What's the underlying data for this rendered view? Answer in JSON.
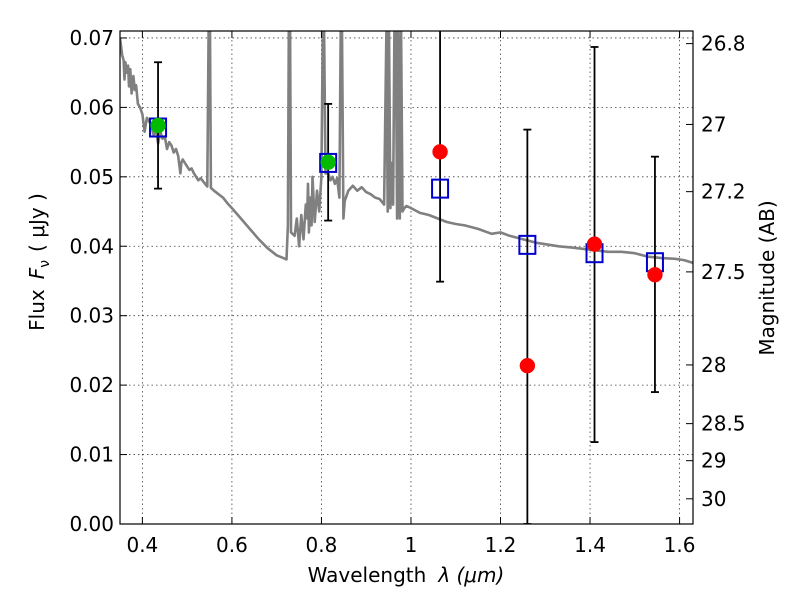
{
  "chart_data": {
    "type": "scatter",
    "xlabel": "Wavelength",
    "xlabel_symbol": "λ (μm)",
    "ylabel": "Flux",
    "ylabel_symbol": "F",
    "ylabel_sub": "ν",
    "ylabel_unit": "( μJy )",
    "y2label": "Magnitude (AB)",
    "xlim": [
      0.35,
      1.63
    ],
    "ylim": [
      0.0,
      0.071
    ],
    "grid": true,
    "x_ticks": [
      {
        "value": 0.4,
        "label": "0.4"
      },
      {
        "value": 0.6,
        "label": "0.6"
      },
      {
        "value": 0.8,
        "label": "0.8"
      },
      {
        "value": 1.0,
        "label": "1"
      },
      {
        "value": 1.2,
        "label": "1.2"
      },
      {
        "value": 1.4,
        "label": "1.4"
      },
      {
        "value": 1.6,
        "label": "1.6"
      }
    ],
    "y_ticks": [
      {
        "value": 0.0,
        "label": "0.00"
      },
      {
        "value": 0.01,
        "label": "0.01"
      },
      {
        "value": 0.02,
        "label": "0.02"
      },
      {
        "value": 0.03,
        "label": "0.03"
      },
      {
        "value": 0.04,
        "label": "0.04"
      },
      {
        "value": 0.05,
        "label": "0.05"
      },
      {
        "value": 0.06,
        "label": "0.06"
      },
      {
        "value": 0.07,
        "label": "0.07"
      }
    ],
    "y2_ticks": [
      {
        "mag": 26.8,
        "label": "26.8"
      },
      {
        "mag": 27.0,
        "label": "27"
      },
      {
        "mag": 27.2,
        "label": "27.2"
      },
      {
        "mag": 27.5,
        "label": "27.5"
      },
      {
        "mag": 28.0,
        "label": "28"
      },
      {
        "mag": 28.5,
        "label": "28.5"
      },
      {
        "mag": 29.0,
        "label": "29"
      },
      {
        "mag": 30.0,
        "label": "30"
      }
    ],
    "series": [
      {
        "kind": "line",
        "color": "#808080",
        "points": [
          [
            0.35,
            0.07
          ],
          [
            0.352,
            0.069
          ],
          [
            0.355,
            0.0675
          ],
          [
            0.358,
            0.0668
          ],
          [
            0.36,
            0.064
          ],
          [
            0.362,
            0.0665
          ],
          [
            0.365,
            0.065
          ],
          [
            0.368,
            0.066
          ],
          [
            0.37,
            0.063
          ],
          [
            0.373,
            0.0655
          ],
          [
            0.376,
            0.062
          ],
          [
            0.38,
            0.0645
          ],
          [
            0.383,
            0.0625
          ],
          [
            0.386,
            0.0632
          ],
          [
            0.39,
            0.0605
          ],
          [
            0.395,
            0.06
          ],
          [
            0.4,
            0.059
          ],
          [
            0.405,
            0.0565
          ],
          [
            0.41,
            0.0585
          ],
          [
            0.415,
            0.058
          ],
          [
            0.42,
            0.0575
          ],
          [
            0.425,
            0.056
          ],
          [
            0.43,
            0.057
          ],
          [
            0.435,
            0.0548
          ],
          [
            0.44,
            0.0565
          ],
          [
            0.445,
            0.0555
          ],
          [
            0.45,
            0.0558
          ],
          [
            0.455,
            0.054
          ],
          [
            0.46,
            0.055
          ],
          [
            0.465,
            0.0545
          ],
          [
            0.47,
            0.0535
          ],
          [
            0.475,
            0.054
          ],
          [
            0.48,
            0.053
          ],
          [
            0.485,
            0.0505
          ],
          [
            0.487,
            0.052
          ],
          [
            0.49,
            0.0525
          ],
          [
            0.495,
            0.052
          ],
          [
            0.5,
            0.0515
          ],
          [
            0.505,
            0.051
          ],
          [
            0.51,
            0.0512
          ],
          [
            0.515,
            0.0505
          ],
          [
            0.52,
            0.05
          ],
          [
            0.525,
            0.0495
          ],
          [
            0.53,
            0.0498
          ],
          [
            0.54,
            0.049
          ],
          [
            0.545,
            0.0486
          ],
          [
            0.548,
            0.071
          ],
          [
            0.551,
            0.071
          ],
          [
            0.553,
            0.0484
          ],
          [
            0.56,
            0.048
          ],
          [
            0.57,
            0.0475
          ],
          [
            0.58,
            0.047
          ],
          [
            0.59,
            0.0462
          ],
          [
            0.6,
            0.0455
          ],
          [
            0.62,
            0.044
          ],
          [
            0.64,
            0.0425
          ],
          [
            0.66,
            0.041
          ],
          [
            0.68,
            0.0397
          ],
          [
            0.7,
            0.0387
          ],
          [
            0.715,
            0.0383
          ],
          [
            0.722,
            0.0381
          ],
          [
            0.725,
            0.043
          ],
          [
            0.727,
            0.071
          ],
          [
            0.73,
            0.071
          ],
          [
            0.732,
            0.042
          ],
          [
            0.74,
            0.0415
          ],
          [
            0.745,
            0.044
          ],
          [
            0.75,
            0.04
          ],
          [
            0.755,
            0.0445
          ],
          [
            0.76,
            0.041
          ],
          [
            0.765,
            0.046
          ],
          [
            0.768,
            0.044
          ],
          [
            0.77,
            0.049
          ],
          [
            0.772,
            0.042
          ],
          [
            0.775,
            0.047
          ],
          [
            0.778,
            0.043
          ],
          [
            0.78,
            0.05
          ],
          [
            0.785,
            0.0435
          ],
          [
            0.79,
            0.048
          ],
          [
            0.795,
            0.045
          ],
          [
            0.8,
            0.05
          ],
          [
            0.803,
            0.071
          ],
          [
            0.806,
            0.071
          ],
          [
            0.809,
            0.0505
          ],
          [
            0.815,
            0.0505
          ],
          [
            0.82,
            0.0495
          ],
          [
            0.825,
            0.05
          ],
          [
            0.83,
            0.049
          ],
          [
            0.835,
            0.0498
          ],
          [
            0.84,
            0.047
          ],
          [
            0.843,
            0.071
          ],
          [
            0.846,
            0.071
          ],
          [
            0.849,
            0.044
          ],
          [
            0.852,
            0.0465
          ],
          [
            0.86,
            0.048
          ],
          [
            0.87,
            0.0487
          ],
          [
            0.88,
            0.048
          ],
          [
            0.89,
            0.0485
          ],
          [
            0.9,
            0.0478
          ],
          [
            0.91,
            0.0475
          ],
          [
            0.92,
            0.047
          ],
          [
            0.93,
            0.0468
          ],
          [
            0.94,
            0.046
          ],
          [
            0.945,
            0.071
          ],
          [
            0.948,
            0.045
          ],
          [
            0.951,
            0.071
          ],
          [
            0.954,
            0.0455
          ],
          [
            0.957,
            0.052
          ],
          [
            0.96,
            0.046
          ],
          [
            0.963,
            0.071
          ],
          [
            0.966,
            0.071
          ],
          [
            0.969,
            0.044
          ],
          [
            0.972,
            0.071
          ],
          [
            0.975,
            0.044
          ],
          [
            0.978,
            0.071
          ],
          [
            0.981,
            0.045
          ],
          [
            0.985,
            0.0455
          ],
          [
            0.99,
            0.0458
          ],
          [
            1.0,
            0.0455
          ],
          [
            1.02,
            0.0448
          ],
          [
            1.04,
            0.0445
          ],
          [
            1.06,
            0.044
          ],
          [
            1.08,
            0.0435
          ],
          [
            1.1,
            0.0432
          ],
          [
            1.12,
            0.043
          ],
          [
            1.15,
            0.0425
          ],
          [
            1.18,
            0.0418
          ],
          [
            1.2,
            0.042
          ],
          [
            1.22,
            0.0415
          ],
          [
            1.25,
            0.041
          ],
          [
            1.28,
            0.0405
          ],
          [
            1.3,
            0.0403
          ],
          [
            1.33,
            0.04
          ],
          [
            1.36,
            0.0398
          ],
          [
            1.4,
            0.0395
          ],
          [
            1.44,
            0.0392
          ],
          [
            1.47,
            0.0392
          ],
          [
            1.5,
            0.039
          ],
          [
            1.53,
            0.0385
          ],
          [
            1.56,
            0.0383
          ],
          [
            1.59,
            0.0382
          ],
          [
            1.61,
            0.038
          ],
          [
            1.63,
            0.0376
          ]
        ]
      },
      {
        "kind": "errorbar",
        "color": "#000000",
        "points": [
          {
            "x": 0.435,
            "lo": 0.0483,
            "hi": 0.0665
          },
          {
            "x": 0.815,
            "lo": 0.0437,
            "hi": 0.0605
          },
          {
            "x": 1.065,
            "lo": 0.0349,
            "hi": 0.0715
          },
          {
            "x": 1.26,
            "lo": 0.0,
            "hi": 0.0568
          },
          {
            "x": 1.41,
            "lo": 0.0118,
            "hi": 0.0687
          },
          {
            "x": 1.545,
            "lo": 0.019,
            "hi": 0.0529
          }
        ]
      },
      {
        "kind": "square-markers",
        "color": "#0000cc",
        "points": [
          [
            0.435,
            0.0571
          ],
          [
            0.815,
            0.052
          ],
          [
            1.065,
            0.0483
          ],
          [
            1.26,
            0.0402
          ],
          [
            1.41,
            0.039
          ],
          [
            1.545,
            0.0377
          ]
        ]
      },
      {
        "kind": "circle-markers",
        "color": "#00bb00",
        "points": [
          [
            0.435,
            0.0574
          ],
          [
            0.815,
            0.0521
          ]
        ]
      },
      {
        "kind": "circle-markers",
        "color": "#ff0000",
        "points": [
          [
            1.065,
            0.0536
          ],
          [
            1.26,
            0.0228
          ],
          [
            1.41,
            0.0403
          ],
          [
            1.545,
            0.0359
          ]
        ]
      }
    ]
  }
}
